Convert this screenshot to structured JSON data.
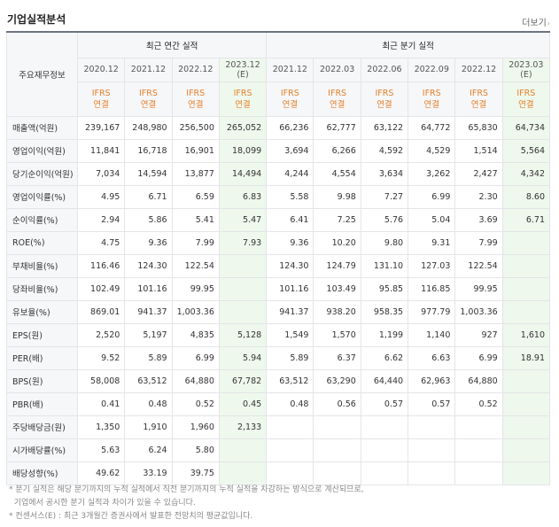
{
  "title": "기업실적분석",
  "more_label": "더보기",
  "left_header": "주요재무정보",
  "groups": {
    "annual": "최근 연간 실적",
    "quarter": "최근 분기 실적"
  },
  "columns": [
    {
      "date": "2020.12",
      "est": false
    },
    {
      "date": "2021.12",
      "est": false
    },
    {
      "date": "2022.12",
      "est": false
    },
    {
      "date": "2023.12",
      "sub": "(E)",
      "est": true
    },
    {
      "date": "2021.12",
      "est": false
    },
    {
      "date": "2022.03",
      "est": false
    },
    {
      "date": "2022.06",
      "est": false
    },
    {
      "date": "2022.09",
      "est": false
    },
    {
      "date": "2022.12",
      "est": false
    },
    {
      "date": "2023.03",
      "sub": "(E)",
      "est": true
    }
  ],
  "gaap": {
    "line1": "IFRS",
    "line2": "연결"
  },
  "rows": [
    {
      "label": "매출액(억원)",
      "values": [
        "239,167",
        "248,980",
        "256,500",
        "265,052",
        "66,236",
        "62,777",
        "63,122",
        "64,772",
        "65,830",
        "64,734"
      ]
    },
    {
      "label": "영업이익(억원)",
      "values": [
        "11,841",
        "16,718",
        "16,901",
        "18,099",
        "3,694",
        "6,266",
        "4,592",
        "4,529",
        "1,514",
        "5,564"
      ]
    },
    {
      "label": "당기순이익(억원)",
      "values": [
        "7,034",
        "14,594",
        "13,877",
        "14,494",
        "4,244",
        "4,554",
        "3,634",
        "3,262",
        "2,427",
        "4,342"
      ]
    },
    {
      "label": "영업이익률(%)",
      "values": [
        "4.95",
        "6.71",
        "6.59",
        "6.83",
        "5.58",
        "9.98",
        "7.27",
        "6.99",
        "2.30",
        "8.60"
      ]
    },
    {
      "label": "순이익률(%)",
      "values": [
        "2.94",
        "5.86",
        "5.41",
        "5.47",
        "6.41",
        "7.25",
        "5.76",
        "5.04",
        "3.69",
        "6.71"
      ]
    },
    {
      "label": "ROE(%)",
      "values": [
        "4.75",
        "9.36",
        "7.99",
        "7.93",
        "9.36",
        "10.20",
        "9.80",
        "9.31",
        "7.99",
        ""
      ]
    },
    {
      "label": "부채비율(%)",
      "values": [
        "116.46",
        "124.30",
        "122.54",
        "",
        "124.30",
        "124.79",
        "131.10",
        "127.03",
        "122.54",
        ""
      ]
    },
    {
      "label": "당좌비율(%)",
      "values": [
        "102.49",
        "101.16",
        "99.95",
        "",
        "101.16",
        "103.49",
        "95.85",
        "116.85",
        "99.95",
        ""
      ]
    },
    {
      "label": "유보율(%)",
      "values": [
        "869.01",
        "941.37",
        "1,003.36",
        "",
        "941.37",
        "938.20",
        "958.35",
        "977.79",
        "1,003.36",
        ""
      ]
    },
    {
      "label": "EPS(원)",
      "values": [
        "2,520",
        "5,197",
        "4,835",
        "5,128",
        "1,549",
        "1,570",
        "1,199",
        "1,140",
        "927",
        "1,610"
      ]
    },
    {
      "label": "PER(배)",
      "values": [
        "9.52",
        "5.89",
        "6.99",
        "5.94",
        "5.89",
        "6.37",
        "6.62",
        "6.63",
        "6.99",
        "18.91"
      ]
    },
    {
      "label": "BPS(원)",
      "values": [
        "58,008",
        "63,512",
        "64,880",
        "67,782",
        "63,512",
        "63,290",
        "64,440",
        "62,963",
        "64,880",
        ""
      ]
    },
    {
      "label": "PBR(배)",
      "values": [
        "0.41",
        "0.48",
        "0.52",
        "0.45",
        "0.48",
        "0.56",
        "0.57",
        "0.57",
        "0.52",
        ""
      ]
    },
    {
      "label": "주당배당금(원)",
      "values": [
        "1,350",
        "1,910",
        "1,960",
        "2,133",
        "",
        "",
        "",
        "",
        "",
        ""
      ]
    },
    {
      "label": "시가배당률(%)",
      "values": [
        "5.63",
        "6.24",
        "5.80",
        "",
        "",
        "",
        "",
        "",
        "",
        ""
      ]
    },
    {
      "label": "배당성향(%)",
      "values": [
        "49.62",
        "33.19",
        "39.75",
        "",
        "",
        "",
        "",
        "",
        "",
        ""
      ]
    }
  ],
  "notes": [
    "* 분기 실적은 해당 분기까지의 누적 실적에서 직전 분기까지의 누적 실적을 차감하는 방식으로 계산되므로,",
    "  기업에서 공시한 분기 실적과 차이가 있을 수 있습니다.",
    "* 컨센서스(E) : 최근 3개월간 증권사에서 발표한 전망치의 평균값입니다."
  ]
}
